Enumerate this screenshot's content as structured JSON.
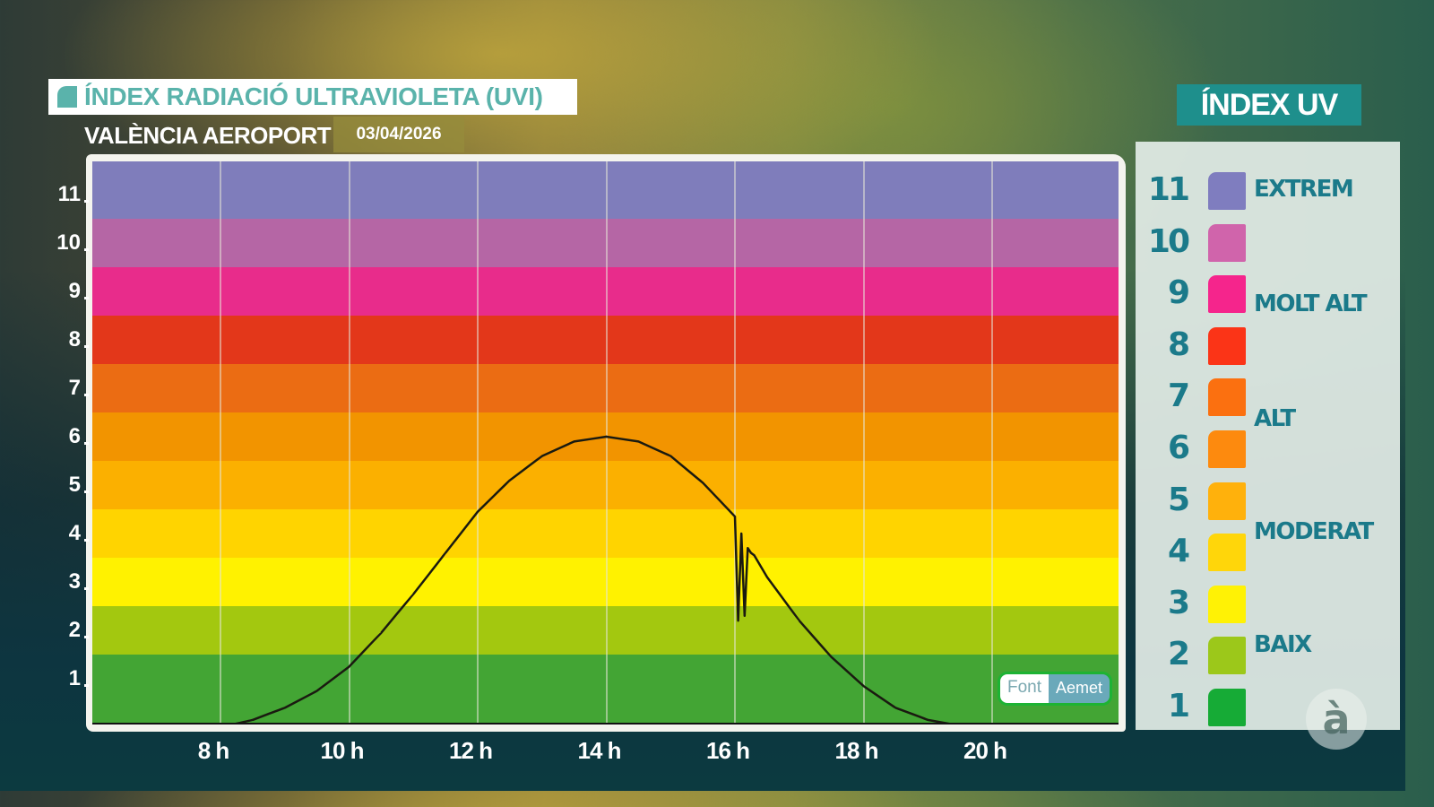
{
  "header": {
    "title": "ÍNDEX RADIACIÓ ULTRAVIOLETA (UVI)",
    "station": "VALÈNCIA AEROPORT",
    "date": "03/04/2026"
  },
  "legend": {
    "title": "ÍNDEX UV",
    "levels": [
      {
        "value": "11",
        "color": "#7f7dbf"
      },
      {
        "value": "10",
        "color": "#d064ab"
      },
      {
        "value": "9",
        "color": "#f5258c"
      },
      {
        "value": "8",
        "color": "#fb3417"
      },
      {
        "value": "7",
        "color": "#fb7010"
      },
      {
        "value": "6",
        "color": "#fd8a0e"
      },
      {
        "value": "5",
        "color": "#ffb10c"
      },
      {
        "value": "4",
        "color": "#ffd60a"
      },
      {
        "value": "3",
        "color": "#fff205"
      },
      {
        "value": "2",
        "color": "#9cc81a"
      },
      {
        "value": "1",
        "color": "#16ab36"
      }
    ],
    "categories": [
      {
        "label": "EXTREM"
      },
      {
        "label": "MOLT ALT"
      },
      {
        "label": "ALT"
      },
      {
        "label": "MODERAT"
      },
      {
        "label": "BAIX"
      }
    ]
  },
  "source": {
    "label": "Font",
    "name": "Aemet"
  },
  "logo": {
    "glyph": "à"
  },
  "chart_data": {
    "type": "line",
    "title": "ÍNDEX RADIACIÓ ULTRAVIOLETA (UVI)",
    "subtitle": "VALÈNCIA AEROPORT 03/04/2026",
    "xlabel": "",
    "ylabel": "",
    "x_ticks": [
      "8 h",
      "10 h",
      "12 h",
      "14 h",
      "16 h",
      "18 h",
      "20 h"
    ],
    "y_ticks": [
      "1",
      "2",
      "3",
      "4",
      "5",
      "6",
      "7",
      "8",
      "9",
      "10",
      "11"
    ],
    "xlim": [
      6.1,
      22.0
    ],
    "ylim": [
      0,
      11.7
    ],
    "grid": {
      "vertical": true,
      "horizontal": false
    },
    "background_bands": [
      {
        "range": [
          0,
          1.5
        ],
        "color": "#43a534"
      },
      {
        "range": [
          1.5,
          2.5
        ],
        "color": "#a3c80f"
      },
      {
        "range": [
          2.5,
          3.5
        ],
        "color": "#fff200"
      },
      {
        "range": [
          3.5,
          4.5
        ],
        "color": "#ffd400"
      },
      {
        "range": [
          4.5,
          5.5
        ],
        "color": "#fbb000"
      },
      {
        "range": [
          5.5,
          6.5
        ],
        "color": "#f29400"
      },
      {
        "range": [
          6.5,
          7.5
        ],
        "color": "#eb6c13"
      },
      {
        "range": [
          7.5,
          8.5
        ],
        "color": "#e3371a"
      },
      {
        "range": [
          8.5,
          9.5
        ],
        "color": "#e82c8b"
      },
      {
        "range": [
          9.5,
          10.5
        ],
        "color": "#b566a5"
      },
      {
        "range": [
          10.5,
          11.7
        ],
        "color": "#7f7dbb"
      }
    ],
    "series": [
      {
        "name": "UVI",
        "color": "#1a1a10",
        "x": [
          8.0,
          8.5,
          9.0,
          9.5,
          10.0,
          10.5,
          11.0,
          11.5,
          12.0,
          12.5,
          13.0,
          13.5,
          14.0,
          14.5,
          15.0,
          15.5,
          16.0,
          16.05,
          16.1,
          16.15,
          16.2,
          16.25,
          16.3,
          16.5,
          17.0,
          17.5,
          18.0,
          18.5,
          19.0,
          19.5,
          20.0
        ],
        "y": [
          0.0,
          0.15,
          0.4,
          0.75,
          1.25,
          1.95,
          2.75,
          3.6,
          4.45,
          5.1,
          5.6,
          5.9,
          6.0,
          5.9,
          5.6,
          5.05,
          4.35,
          2.2,
          4.0,
          2.3,
          3.7,
          3.6,
          3.55,
          3.1,
          2.2,
          1.45,
          0.85,
          0.4,
          0.15,
          0.03,
          0.0
        ]
      }
    ],
    "legend": [
      {
        "label": "EXTREM",
        "levels": [
          11
        ]
      },
      {
        "label": "MOLT ALT",
        "levels": [
          8,
          9,
          10
        ]
      },
      {
        "label": "ALT",
        "levels": [
          6,
          7
        ]
      },
      {
        "label": "MODERAT",
        "levels": [
          3,
          4,
          5
        ]
      },
      {
        "label": "BAIX",
        "levels": [
          1,
          2
        ]
      }
    ],
    "legend_position": "right",
    "annotations": [
      "Font Aemet"
    ]
  }
}
